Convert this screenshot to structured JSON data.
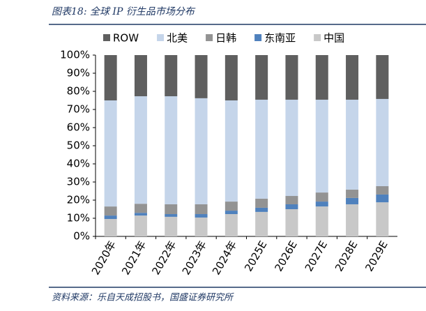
{
  "chart_data": {
    "type": "stacked_bar",
    "title": "图表18: 全球 IP 衍生品市场分布",
    "source": "资料来源：乐自天成招股书，国盛证券研究所",
    "categories": [
      "2020年",
      "2021年",
      "2022年",
      "2023年",
      "2024年",
      "2025E",
      "2026E",
      "2027E",
      "2028E",
      "2029E"
    ],
    "series": [
      {
        "name": "ROW",
        "color": "#5f5f5f",
        "values": [
          25,
          22.7,
          22.7,
          23.8,
          25,
          24.6,
          24.6,
          24.6,
          24.6,
          24.2
        ]
      },
      {
        "name": "北美",
        "color": "#c5d5ea",
        "values": [
          58.5,
          59.3,
          59.6,
          58.5,
          55.8,
          54.6,
          53.1,
          51.2,
          49.6,
          48.1
        ]
      },
      {
        "name": "日韩",
        "color": "#939393",
        "values": [
          5,
          5,
          5.4,
          5.4,
          5,
          5,
          4.6,
          5,
          4.6,
          4.6
        ]
      },
      {
        "name": "东南亚",
        "color": "#4f81bd",
        "values": [
          1.9,
          1.5,
          1.5,
          1.9,
          1.9,
          2.3,
          2.7,
          2.7,
          3.5,
          4.3
        ]
      },
      {
        "name": "中国",
        "color": "#c8c8c8",
        "values": [
          9.6,
          11.5,
          10.8,
          10.4,
          12.3,
          13.5,
          15,
          16.5,
          17.7,
          18.8
        ]
      }
    ],
    "ylim": [
      0,
      100
    ],
    "yticks": [
      {
        "value": 0,
        "label": "0%"
      },
      {
        "value": 10,
        "label": "10%"
      },
      {
        "value": 20,
        "label": "20%"
      },
      {
        "value": 30,
        "label": "30%"
      },
      {
        "value": 40,
        "label": "40%"
      },
      {
        "value": 50,
        "label": "50%"
      },
      {
        "value": 60,
        "label": "60%"
      },
      {
        "value": 70,
        "label": "70%"
      },
      {
        "value": 80,
        "label": "80%"
      },
      {
        "value": 90,
        "label": "90%"
      },
      {
        "value": 100,
        "label": "100%"
      }
    ]
  }
}
